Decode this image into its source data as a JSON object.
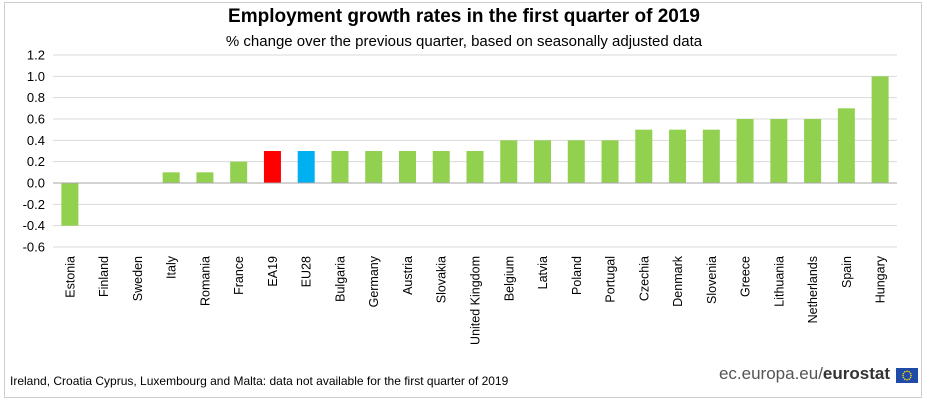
{
  "chart_data": {
    "type": "bar",
    "title": "Employment growth rates in the first quarter of 2019",
    "subtitle": "% change over the previous quarter, based on seasonally adjusted data",
    "categories": [
      "Estonia",
      "Finland",
      "Sweden",
      "Italy",
      "Romania",
      "France",
      "EA19",
      "EU28",
      "Bulgaria",
      "Germany",
      "Austria",
      "Slovakia",
      "United Kingdom",
      "Belgium",
      "Latvia",
      "Poland",
      "Portugal",
      "Czechia",
      "Denmark",
      "Slovenia",
      "Greece",
      "Lithuania",
      "Netherlands",
      "Spain",
      "Hungary"
    ],
    "values": [
      -0.4,
      0.0,
      0.0,
      0.1,
      0.1,
      0.2,
      0.3,
      0.3,
      0.3,
      0.3,
      0.3,
      0.3,
      0.3,
      0.4,
      0.4,
      0.4,
      0.4,
      0.5,
      0.5,
      0.5,
      0.6,
      0.6,
      0.6,
      0.7,
      1.0
    ],
    "highlight": {
      "EA19": "#ff0000",
      "EU28": "#00b0f0"
    },
    "bar_color": "#92d050",
    "ylim": [
      -0.6,
      1.2
    ],
    "yticks": [
      1.2,
      1.0,
      0.8,
      0.6,
      0.4,
      0.2,
      0.0,
      -0.2,
      -0.4,
      -0.6
    ],
    "ytick_labels": [
      "1.2",
      "1.0",
      "0.8",
      "0.6",
      "0.4",
      "0.2",
      "0.0",
      "-0.2",
      "-0.4",
      "-0.6"
    ],
    "grid": true,
    "xlabel": "",
    "ylabel": ""
  },
  "footnote": "Ireland, Croatia Cyprus, Luxembourg and Malta: data not available for the first quarter of 2019",
  "brand": {
    "prefix": "ec.europa.eu/",
    "name": "eurostat"
  },
  "flag_icon": "eu-flag-icon"
}
